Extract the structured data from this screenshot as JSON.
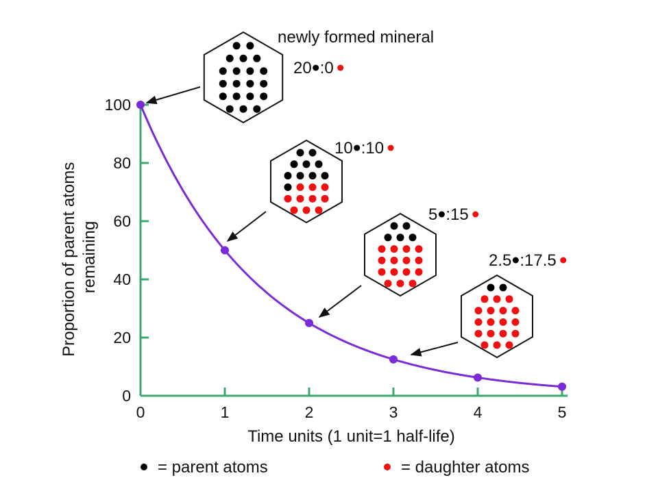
{
  "chart_data": {
    "type": "line",
    "xlabel": "Time units (1 unit=1 half-life)",
    "ylabel_lines": [
      "Proportion of parent atoms",
      "remaining"
    ],
    "xlim": [
      0,
      5
    ],
    "ylim": [
      0,
      100
    ],
    "x_ticks": [
      "0",
      "1",
      "2",
      "3",
      "4",
      "5"
    ],
    "y_ticks": [
      "0",
      "20",
      "40",
      "60",
      "80",
      "100"
    ],
    "grid": false,
    "series": [
      {
        "x": [
          0,
          1,
          2,
          3,
          4,
          5
        ],
        "values": [
          100,
          50,
          25,
          12.5,
          6.25,
          3.125
        ]
      }
    ],
    "annotations": [
      {
        "title": "newly formed mineral",
        "parent": "20",
        "daughter": ":0",
        "x": 0,
        "y": 100,
        "parent_atoms": 20,
        "daughter_atoms": 0
      },
      {
        "title": "",
        "parent": "10",
        "daughter": ":10",
        "x": 1,
        "y": 50,
        "parent_atoms": 10,
        "daughter_atoms": 10
      },
      {
        "title": "",
        "parent": "5",
        "daughter": ":15",
        "x": 2,
        "y": 25,
        "parent_atoms": 5,
        "daughter_atoms": 15
      },
      {
        "title": "",
        "parent": "2.5",
        "daughter": ":17.5",
        "x": 3,
        "y": 12.5,
        "parent_atoms": 2,
        "daughter_atoms": 18
      }
    ],
    "legend": [
      {
        "label": "= parent atoms",
        "color": "#000000"
      },
      {
        "label": "= daughter atoms",
        "color": "#ee1111"
      }
    ],
    "colors": {
      "curve": "#7a2bd6",
      "axis": "#3aa870",
      "parent_atom": "#000000",
      "daughter_atom": "#ee1111"
    }
  }
}
